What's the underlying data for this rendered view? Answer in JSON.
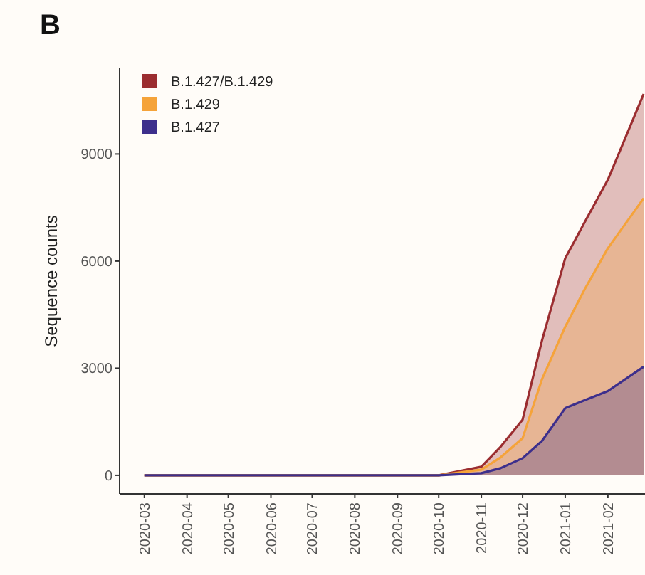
{
  "chart_data": {
    "type": "area",
    "title": "B",
    "ylabel": "Sequence counts",
    "x": [
      "2020-03-01",
      "2020-10-01",
      "2020-11-01",
      "2020-11-15",
      "2020-12-01",
      "2020-12-15",
      "2021-01-01",
      "2021-01-15",
      "2021-02-01",
      "2021-02-27"
    ],
    "series": [
      {
        "name": "B.1.427/B.1.429",
        "color": "#9b2d30",
        "values": [
          0,
          0,
          240,
          800,
          1560,
          3760,
          6080,
          7080,
          8280,
          10680
        ]
      },
      {
        "name": "B.1.429",
        "color": "#f5a33a",
        "values": [
          0,
          0,
          160,
          500,
          1040,
          2680,
          4160,
          5200,
          6360,
          7760
        ]
      },
      {
        "name": "B.1.427",
        "color": "#3d2f8c",
        "values": [
          0,
          0,
          60,
          200,
          480,
          960,
          1880,
          2100,
          2360,
          3040
        ]
      }
    ],
    "xlim": [
      "2020-02-12",
      "2021-02-28"
    ],
    "xticks": [
      "2020-03",
      "2020-04",
      "2020-05",
      "2020-06",
      "2020-07",
      "2020-08",
      "2020-09",
      "2020-10",
      "2020-11",
      "2020-12",
      "2021-01",
      "2021-02"
    ],
    "ylim": [
      -520,
      11400
    ],
    "yticks": [
      0,
      3000,
      6000,
      9000
    ],
    "grid": false,
    "legend": "top left"
  }
}
